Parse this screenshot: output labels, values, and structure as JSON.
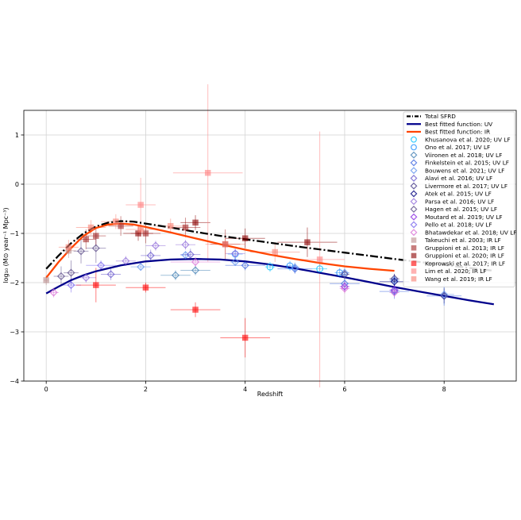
{
  "chart_data": {
    "type": "scatter",
    "xlabel": "Redshift",
    "ylabel": "log₁₀ (M⊙ year⁻¹ Mpc⁻³)",
    "xlim": [
      -0.45,
      9.45
    ],
    "ylim": [
      -4,
      1.5
    ],
    "x_ticks": [
      0,
      2,
      4,
      6,
      8
    ],
    "y_ticks": [
      -4,
      -3,
      -2,
      -1,
      0,
      1
    ],
    "x_tick_labels": [
      "0",
      "2",
      "4",
      "6",
      "8"
    ],
    "y_tick_labels": [
      "−4",
      "−3",
      "−2",
      "−1",
      "0",
      "1"
    ],
    "grid": true,
    "legend_position": "top-right",
    "lines": [
      {
        "name": "Total SFRD",
        "color": "#000000",
        "style": "dashdot",
        "x": [
          0,
          0.25,
          0.5,
          0.75,
          1.0,
          1.25,
          1.5,
          1.75,
          2.0,
          2.5,
          3.0,
          3.5,
          4.0,
          5.0,
          6.0,
          7.0,
          8.0,
          9.0
        ],
        "y": [
          -1.72,
          -1.45,
          -1.2,
          -1.0,
          -0.86,
          -0.78,
          -0.75,
          -0.76,
          -0.8,
          -0.88,
          -0.97,
          -1.05,
          -1.12,
          -1.26,
          -1.39,
          -1.52,
          -1.64,
          -1.76
        ]
      },
      {
        "name": "Best fitted function: UV",
        "color": "#00008b",
        "style": "solid",
        "x": [
          0,
          0.25,
          0.5,
          0.75,
          1.0,
          1.5,
          2.0,
          2.5,
          3.0,
          3.5,
          4.0,
          4.5,
          5.0,
          5.5,
          6.0,
          6.5,
          7.0,
          7.5,
          8.0,
          8.5,
          9.0
        ],
        "y": [
          -2.22,
          -2.08,
          -1.95,
          -1.85,
          -1.77,
          -1.65,
          -1.57,
          -1.53,
          -1.52,
          -1.53,
          -1.57,
          -1.63,
          -1.71,
          -1.8,
          -1.89,
          -1.99,
          -2.09,
          -2.18,
          -2.27,
          -2.36,
          -2.44
        ]
      },
      {
        "name": "Best fitted function: IR",
        "color": "#ff4500",
        "style": "solid",
        "x": [
          0,
          0.25,
          0.5,
          0.75,
          1.0,
          1.25,
          1.5,
          1.75,
          2.0,
          2.5,
          3.0,
          3.5,
          4.0,
          4.5,
          5.0,
          5.5,
          6.0,
          6.5,
          7.0
        ],
        "y": [
          -1.9,
          -1.58,
          -1.3,
          -1.05,
          -0.89,
          -0.82,
          -0.8,
          -0.82,
          -0.87,
          -0.98,
          -1.1,
          -1.22,
          -1.33,
          -1.43,
          -1.52,
          -1.6,
          -1.67,
          -1.72,
          -1.76
        ]
      }
    ],
    "series": [
      {
        "name": "Khusanova et al. 2020; UV LF",
        "color": "#00bfff",
        "marker": "o",
        "points": [
          [
            4.5,
            -1.68,
            0.1,
            0.1
          ],
          [
            5.5,
            -1.72,
            0.15,
            0.1
          ]
        ]
      },
      {
        "name": "Ono et al. 2017; UV LF",
        "color": "#1e90ff",
        "marker": "o",
        "points": [
          [
            3.8,
            -1.42,
            0.15,
            0.1
          ],
          [
            4.9,
            -1.66,
            0.1,
            0.1
          ],
          [
            5.9,
            -1.8,
            0.1,
            0.1
          ]
        ]
      },
      {
        "name": "Viironen et al. 2018; UV LF",
        "color": "#4682b4",
        "marker": "D",
        "points": [
          [
            3.0,
            -1.75,
            0.3,
            0.1
          ],
          [
            2.6,
            -1.85,
            0.3,
            0.1
          ]
        ]
      },
      {
        "name": "Finkelstein et al. 2015; UV LF",
        "color": "#4169e1",
        "marker": "D",
        "points": [
          [
            4.0,
            -1.65,
            0.4,
            0.1
          ],
          [
            5.0,
            -1.72,
            0.35,
            0.1
          ],
          [
            6.0,
            -2.02,
            0.3,
            0.12
          ],
          [
            7.0,
            -2.18,
            0.3,
            0.15
          ],
          [
            8.0,
            -2.27,
            0.35,
            0.2
          ]
        ]
      },
      {
        "name": "Bouwens et al. 2021; UV LF",
        "color": "#6495ed",
        "marker": "D",
        "points": [
          [
            1.9,
            -1.68,
            0.2,
            0.08
          ],
          [
            2.8,
            -1.44,
            0.1,
            0.08
          ],
          [
            3.8,
            -1.58,
            0.1,
            0.08
          ],
          [
            5.0,
            -1.69,
            0.1,
            0.1
          ],
          [
            6.0,
            -1.8,
            0.1,
            0.1
          ],
          [
            7.0,
            -1.95,
            0.1,
            0.1
          ],
          [
            8.0,
            -2.24,
            0.2,
            0.2
          ]
        ]
      },
      {
        "name": "Alavi et al. 2016; UV LF",
        "color": "#6a5acd",
        "marker": "D",
        "points": [
          [
            1.3,
            -1.83,
            0.2,
            0.12
          ],
          [
            2.1,
            -1.45,
            0.2,
            0.12
          ],
          [
            2.9,
            -1.43,
            0.2,
            0.12
          ]
        ]
      },
      {
        "name": "Livermore et al. 2017; UV LF",
        "color": "#483d8b",
        "marker": "D",
        "points": [
          [
            6.0,
            -1.83,
            0.1,
            0.1
          ],
          [
            7.0,
            -1.92,
            0.1,
            0.1
          ],
          [
            8.0,
            -2.27,
            0.1,
            0.15
          ]
        ]
      },
      {
        "name": "Atek et al. 2015; UV LF",
        "color": "#000080",
        "marker": "D",
        "points": [
          [
            7.0,
            -1.98,
            0.3,
            0.15
          ]
        ]
      },
      {
        "name": "Parsa et al. 2016; UV LF",
        "color": "#9370db",
        "marker": "D",
        "points": [
          [
            0.8,
            -1.9,
            0.2,
            0.1
          ],
          [
            1.6,
            -1.56,
            0.2,
            0.1
          ],
          [
            2.2,
            -1.25,
            0.2,
            0.1
          ],
          [
            2.8,
            -1.23,
            0.2,
            0.1
          ],
          [
            3.8,
            -1.41,
            0.2,
            0.1
          ]
        ]
      },
      {
        "name": "Hagen et al. 2015; UV LF",
        "color": "#5d4e8a",
        "marker": "D",
        "points": [
          [
            0.3,
            -1.87,
            0.15,
            0.2
          ],
          [
            0.5,
            -1.8,
            0.15,
            0.25
          ],
          [
            0.7,
            -1.36,
            0.15,
            0.25
          ],
          [
            1.0,
            -1.3,
            0.2,
            0.3
          ]
        ]
      },
      {
        "name": "Moutard et al. 2019; UV LF",
        "color": "#8a2be2",
        "marker": "D",
        "points": [
          [
            6.0,
            -2.08,
            0.1,
            0.1
          ],
          [
            7.0,
            -2.15,
            0.1,
            0.1
          ]
        ]
      },
      {
        "name": "Pello et al. 2018; UV LF",
        "color": "#7b68ee",
        "marker": "D",
        "points": [
          [
            0.5,
            -2.05,
            0.2,
            0.15
          ],
          [
            1.1,
            -1.65,
            0.3,
            0.1
          ]
        ]
      },
      {
        "name": "Bhatawdekar et al. 2018; UV LF",
        "color": "#da70d6",
        "marker": "D",
        "points": [
          [
            0.15,
            -2.2,
            0.1,
            0.1
          ],
          [
            3.0,
            -1.58,
            0.5,
            0.1
          ],
          [
            6.0,
            -2.12,
            0.1,
            0.1
          ],
          [
            7.0,
            -2.2,
            0.1,
            0.1
          ]
        ]
      },
      {
        "name": "Takeuchi et al. 2003; IR LF",
        "color": "#bc8f8f",
        "marker": "s",
        "points": [
          [
            0.0,
            -1.95,
            0.05,
            0.1
          ],
          [
            0.45,
            -1.35,
            0.15,
            0.15
          ]
        ]
      },
      {
        "name": "Gruppioni et al. 2013; IR LF",
        "color": "#a52a2a",
        "marker": "s",
        "points": [
          [
            0.8,
            -1.12,
            0.2,
            0.2
          ],
          [
            1.0,
            -1.05,
            0.2,
            0.2
          ],
          [
            1.5,
            -0.85,
            0.25,
            0.2
          ],
          [
            2.0,
            -1.0,
            0.3,
            0.2
          ],
          [
            2.8,
            -0.88,
            0.3,
            0.2
          ],
          [
            3.6,
            -1.22,
            0.3,
            0.3
          ]
        ]
      },
      {
        "name": "Gruppioni et al. 2020; IR LF",
        "color": "#8b0000",
        "marker": "s",
        "points": [
          [
            1.85,
            -1.0,
            0.3,
            0.15
          ],
          [
            3.0,
            -0.78,
            0.3,
            0.15
          ],
          [
            4.0,
            -1.1,
            0.4,
            0.2
          ],
          [
            5.25,
            -1.18,
            0.6,
            0.3
          ]
        ]
      },
      {
        "name": "Koprowski et al. 2017; IR LF",
        "color": "#ff0000",
        "marker": "s",
        "points": [
          [
            1.0,
            -2.05,
            0.4,
            0.35
          ],
          [
            2.0,
            -2.1,
            0.4,
            0.1
          ],
          [
            3.0,
            -2.55,
            0.5,
            0.15
          ],
          [
            4.0,
            -3.12,
            0.5,
            0.4
          ]
        ]
      },
      {
        "name": "Lim et al. 2020; IR LF",
        "color": "#ff7f7f",
        "marker": "s",
        "points": [
          [
            1.9,
            -0.42,
            0.3,
            0.55
          ],
          [
            3.25,
            0.23,
            0.7,
            1.8
          ],
          [
            5.5,
            -1.53,
            0.5,
            2.6
          ]
        ]
      },
      {
        "name": "Wang et al. 2019; IR LF",
        "color": "#fa8072",
        "marker": "s",
        "points": [
          [
            0.45,
            -1.28,
            0.2,
            0.15
          ],
          [
            0.9,
            -0.88,
            0.3,
            0.15
          ],
          [
            1.4,
            -0.76,
            0.3,
            0.15
          ],
          [
            1.9,
            -0.92,
            0.3,
            0.15
          ],
          [
            2.5,
            -0.85,
            0.3,
            0.15
          ],
          [
            3.6,
            -1.22,
            0.4,
            0.2
          ],
          [
            4.6,
            -1.38,
            0.5,
            0.2
          ]
        ]
      }
    ]
  }
}
